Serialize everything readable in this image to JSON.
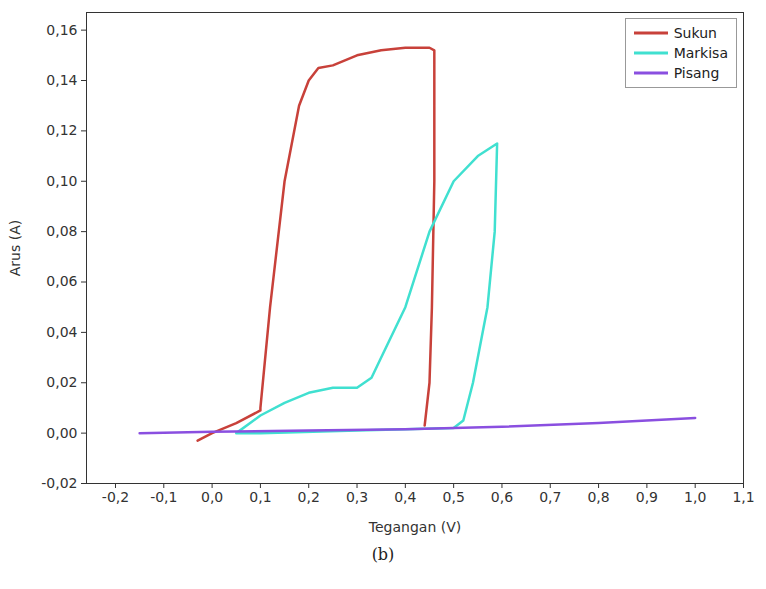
{
  "chart_data": {
    "type": "line",
    "x_label": "Tegangan (V)",
    "y_label": "Arus (A)",
    "caption": "(b)",
    "xlim": [
      -0.26,
      1.1
    ],
    "ylim": [
      -0.02,
      0.167
    ],
    "xticks": [
      {
        "value": -0.2,
        "label": "-0,2"
      },
      {
        "value": -0.1,
        "label": "-0,1"
      },
      {
        "value": 0,
        "label": "0,0"
      },
      {
        "value": 0.1,
        "label": "0,1"
      },
      {
        "value": 0.2,
        "label": "0,2"
      },
      {
        "value": 0.3,
        "label": "0,3"
      },
      {
        "value": 0.4,
        "label": "0,4"
      },
      {
        "value": 0.5,
        "label": "0,5"
      },
      {
        "value": 0.6,
        "label": "0,6"
      },
      {
        "value": 0.7,
        "label": "0,7"
      },
      {
        "value": 0.8,
        "label": "0,8"
      },
      {
        "value": 0.9,
        "label": "0,9"
      },
      {
        "value": 1,
        "label": "1,0"
      },
      {
        "value": 1.1,
        "label": "1,1"
      }
    ],
    "yticks": [
      {
        "value": -0.02,
        "label": "-0,02"
      },
      {
        "value": 0,
        "label": "0,00"
      },
      {
        "value": 0.02,
        "label": "0,02"
      },
      {
        "value": 0.04,
        "label": "0,04"
      },
      {
        "value": 0.06,
        "label": "0,06"
      },
      {
        "value": 0.08,
        "label": "0,08"
      },
      {
        "value": 0.1,
        "label": "0,10"
      },
      {
        "value": 0.12,
        "label": "0,12"
      },
      {
        "value": 0.14,
        "label": "0,14"
      },
      {
        "value": 0.16,
        "label": "0,16"
      }
    ],
    "grid": false,
    "legend": "top-right",
    "series": [
      {
        "name": "Sukun",
        "color": "#c8413a",
        "x": [
          -0.03,
          0.0,
          0.05,
          0.1,
          0.1,
          0.12,
          0.15,
          0.18,
          0.2,
          0.22,
          0.25,
          0.3,
          0.35,
          0.4,
          0.45,
          0.46,
          0.46,
          0.455,
          0.45,
          0.44
        ],
        "values": [
          -0.003,
          0.0,
          0.004,
          0.009,
          0.01,
          0.05,
          0.1,
          0.13,
          0.14,
          0.145,
          0.146,
          0.15,
          0.152,
          0.153,
          0.153,
          0.152,
          0.1,
          0.05,
          0.02,
          0.003
        ]
      },
      {
        "name": "Markisa",
        "color": "#40e0d0",
        "x": [
          0.05,
          0.1,
          0.15,
          0.2,
          0.25,
          0.3,
          0.33,
          0.35,
          0.4,
          0.45,
          0.5,
          0.55,
          0.59,
          0.585,
          0.57,
          0.54,
          0.52,
          0.5,
          0.3,
          0.1,
          0.05
        ],
        "values": [
          0.0,
          0.007,
          0.012,
          0.016,
          0.018,
          0.018,
          0.022,
          0.03,
          0.05,
          0.08,
          0.1,
          0.11,
          0.115,
          0.08,
          0.05,
          0.02,
          0.005,
          0.002,
          0.001,
          0.0,
          0.0
        ]
      },
      {
        "name": "Pisang",
        "color": "#8a4fe0",
        "x": [
          -0.15,
          0.0,
          0.2,
          0.4,
          0.6,
          0.8,
          1.0
        ],
        "values": [
          0.0,
          0.0005,
          0.001,
          0.0015,
          0.0025,
          0.004,
          0.006
        ]
      }
    ]
  }
}
